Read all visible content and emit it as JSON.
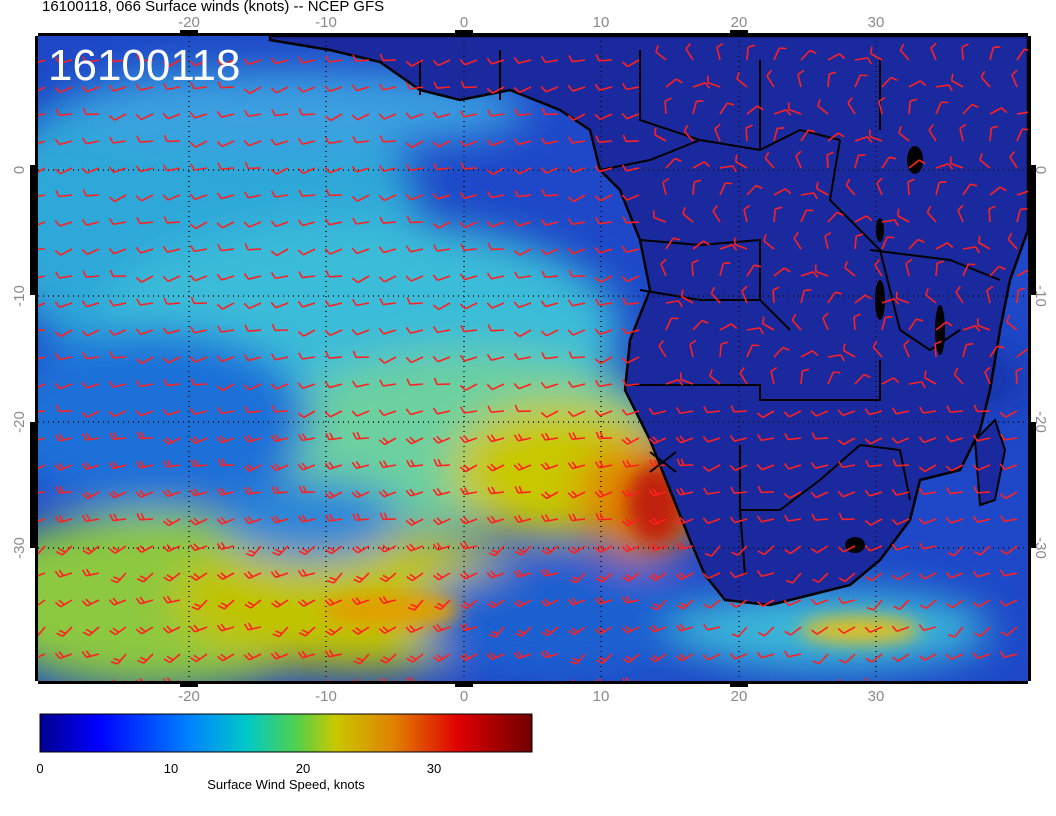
{
  "header": {
    "title": "16100118, 066 Surface winds (knots) -- NCEP GFS"
  },
  "map": {
    "date_stamp": "16100118",
    "lon_ticks": [
      "-20",
      "-10",
      "0",
      "10",
      "20",
      "30"
    ],
    "lat_ticks": [
      "0",
      "-10",
      "-20",
      "-30"
    ],
    "graticule_color": "#111111",
    "barb_color": "#ff2020",
    "coast_color": "#000000",
    "ocean_color": "#1e48c8",
    "land_color": "#1a2a9e",
    "jet_color": "#e0c020",
    "max_color": "#c02010"
  },
  "colorbar": {
    "tick_labels": [
      "0",
      "10",
      "20",
      "30"
    ],
    "title": "Surface Wind Speed, knots",
    "colors": [
      "#00008f",
      "#0000ff",
      "#0080ff",
      "#00c8c8",
      "#50d050",
      "#c8c800",
      "#e08000",
      "#e00000",
      "#700000"
    ]
  },
  "chart_data": {
    "type": "heatmap",
    "title": "16100118, 066 Surface winds (knots) -- NCEP GFS",
    "xlabel": "",
    "ylabel": "",
    "x_ticks": [
      -20,
      -10,
      0,
      10,
      20,
      30
    ],
    "y_ticks": [
      0,
      -10,
      -20,
      -30
    ],
    "colorbar_range": [
      0,
      38
    ],
    "colorbar_label": "Surface Wind Speed, knots"
  }
}
